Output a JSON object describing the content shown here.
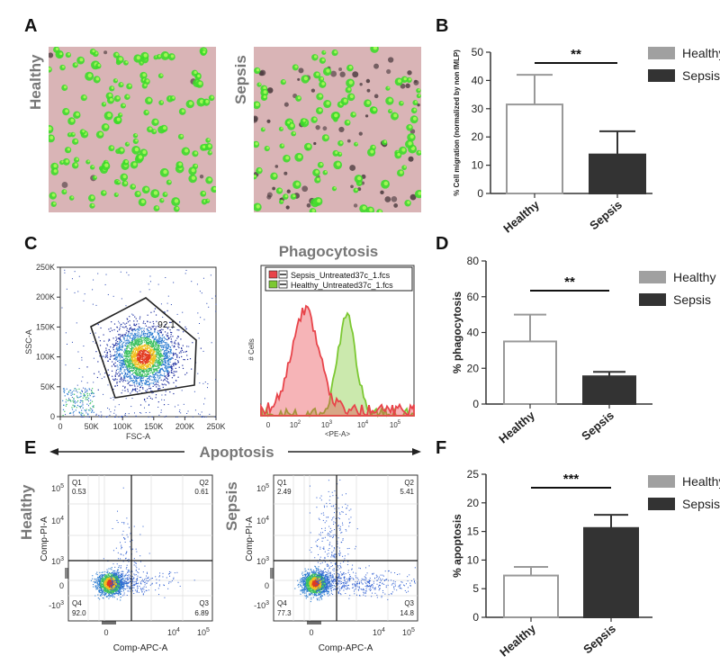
{
  "panels": {
    "A": {
      "letter": "A",
      "images": [
        {
          "label": "Healthy",
          "cells": "green"
        },
        {
          "label": "Sepsis",
          "cells": "mixed"
        }
      ]
    },
    "C": {
      "letter": "C",
      "histogram_title": "Phagocytosis"
    },
    "E": {
      "letter": "E",
      "title": "Apoptosis"
    }
  },
  "flow": {
    "scatter": {
      "xlabel": "FSC-A",
      "ylabel": "SSC-A",
      "xticks": [
        "0",
        "50K",
        "100K",
        "150K",
        "200K",
        "250K"
      ],
      "yticks": [
        "0",
        "50K",
        "100K",
        "150K",
        "200K",
        "250K"
      ],
      "gate_value": "92.1"
    },
    "histogram": {
      "xlabel": "<PE-A>",
      "ylabel": "# Cells",
      "legend": [
        "Sepsis_Untreated37c_1.fcs",
        "Healthy_Untreated37c_1.fcs"
      ],
      "colors": {
        "sepsis": "#e8444a",
        "healthy": "#7cc832"
      },
      "xticks": [
        {
          "base": "0"
        },
        {
          "base": "10",
          "exp": "2"
        },
        {
          "base": "10",
          "exp": "3"
        },
        {
          "base": "10",
          "exp": "4"
        },
        {
          "base": "10",
          "exp": "5"
        }
      ]
    },
    "apoptosis": [
      {
        "label": "Healthy",
        "quadrants": {
          "Q1": "0.53",
          "Q2": "0.61",
          "Q3": "6.89",
          "Q4": "92.0"
        }
      },
      {
        "label": "Sepsis",
        "quadrants": {
          "Q1": "2.49",
          "Q2": "5.41",
          "Q3": "14.8",
          "Q4": "77.3"
        }
      }
    ],
    "apoptosis_axes": {
      "xlabel": "Comp-APC-A",
      "ylabel": "Comp-PI-A",
      "quad_names": [
        "Q1",
        "Q2",
        "Q3",
        "Q4"
      ],
      "yticks": [
        {
          "base": "10",
          "exp": "5"
        },
        {
          "base": "10",
          "exp": "4"
        },
        {
          "base": "10",
          "exp": "3"
        },
        {
          "base": "0"
        },
        {
          "base": "-10",
          "exp": "3"
        }
      ],
      "xticks": [
        {
          "base": "0"
        },
        {
          "base": "10",
          "exp": "4"
        },
        {
          "base": "10",
          "exp": "5"
        }
      ]
    }
  },
  "chart_data": [
    {
      "panel": "B",
      "type": "bar",
      "categories": [
        "Healthy",
        "Sepsis"
      ],
      "values": [
        31.5,
        13.8
      ],
      "errors": [
        10.5,
        8.2
      ],
      "ylabel": "% Cell migration (normalized by non fMLP)",
      "ylim": [
        0,
        50
      ],
      "yticks": [
        0,
        10,
        20,
        30,
        40,
        50
      ],
      "significance": "**",
      "legend": [
        "Healthy",
        "Sepsis"
      ],
      "colors": [
        "#ffffff",
        "#333333"
      ],
      "edge_colors": [
        "#999999",
        "#333333"
      ],
      "legend_colors": [
        "#a0a0a0",
        "#333333"
      ]
    },
    {
      "panel": "D",
      "type": "bar",
      "categories": [
        "Healthy",
        "Sepsis"
      ],
      "values": [
        35,
        15.5
      ],
      "errors": [
        15,
        2.5
      ],
      "ylabel": "% phagocytosis",
      "ylim": [
        0,
        80
      ],
      "yticks": [
        0,
        20,
        40,
        60,
        80
      ],
      "significance": "**",
      "legend": [
        "Healthy",
        "Sepsis"
      ],
      "colors": [
        "#ffffff",
        "#333333"
      ],
      "edge_colors": [
        "#999999",
        "#333333"
      ],
      "legend_colors": [
        "#a0a0a0",
        "#333333"
      ]
    },
    {
      "panel": "F",
      "type": "bar",
      "categories": [
        "Healthy",
        "Sepsis"
      ],
      "values": [
        7.3,
        15.6
      ],
      "errors": [
        1.5,
        2.3
      ],
      "ylabel": "% apoptosis",
      "ylim": [
        0,
        25
      ],
      "yticks": [
        0,
        5,
        10,
        15,
        20,
        25
      ],
      "significance": "***",
      "legend": [
        "Healthy",
        "Sepsis"
      ],
      "colors": [
        "#ffffff",
        "#333333"
      ],
      "edge_colors": [
        "#999999",
        "#333333"
      ],
      "legend_colors": [
        "#a0a0a0",
        "#333333"
      ]
    }
  ]
}
